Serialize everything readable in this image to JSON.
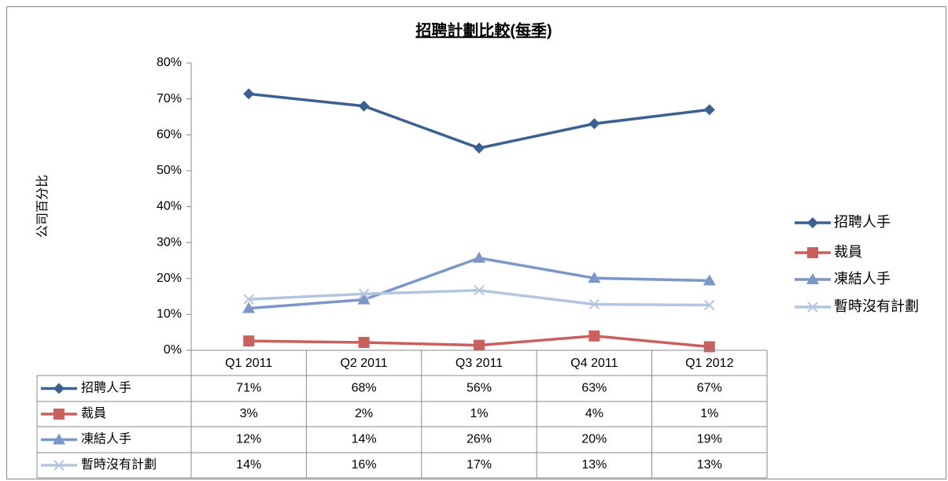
{
  "chart_data": {
    "type": "line",
    "title": "招聘計劃比較(每季)",
    "y_label": "公司百分比",
    "categories": [
      "Q1 2011",
      "Q2 2011",
      "Q3 2011",
      "Q4 2011",
      "Q1 2012"
    ],
    "series": [
      {
        "name": "招聘人手",
        "color": "#3b6092",
        "marker": "diamond",
        "values": [
          71.4,
          68,
          56.3,
          63.1,
          67
        ],
        "value_labels": [
          "71%",
          "68%",
          "56%",
          "63%",
          "67%"
        ]
      },
      {
        "name": "裁員",
        "color": "#c9605d",
        "marker": "square",
        "values": [
          2.6,
          2.2,
          1.4,
          4.0,
          1.0
        ],
        "value_labels": [
          "3%",
          "2%",
          "1%",
          "4%",
          "1%"
        ]
      },
      {
        "name": "凍結人手",
        "color": "#7b96c8",
        "marker": "triangle",
        "values": [
          11.7,
          14.1,
          25.7,
          20.1,
          19.4
        ],
        "value_labels": [
          "12%",
          "14%",
          "26%",
          "20%",
          "19%"
        ]
      },
      {
        "name": "暫時沒有計劃",
        "color": "#b4c6df",
        "marker": "x",
        "values": [
          14.2,
          15.7,
          16.7,
          12.8,
          12.6
        ],
        "value_labels": [
          "14%",
          "16%",
          "17%",
          "13%",
          "13%"
        ]
      }
    ],
    "ylim": [
      0,
      80
    ],
    "yticks": [
      {
        "value": 0,
        "label": "0%"
      },
      {
        "value": 10,
        "label": "10%"
      },
      {
        "value": 20,
        "label": "20%"
      },
      {
        "value": 30,
        "label": "30%"
      },
      {
        "value": 40,
        "label": "40%"
      },
      {
        "value": 50,
        "label": "50%"
      },
      {
        "value": 60,
        "label": "60%"
      },
      {
        "value": 70,
        "label": "70%"
      },
      {
        "value": 80,
        "label": "80%"
      }
    ],
    "grid": false,
    "legend": "right",
    "data_table": true
  }
}
